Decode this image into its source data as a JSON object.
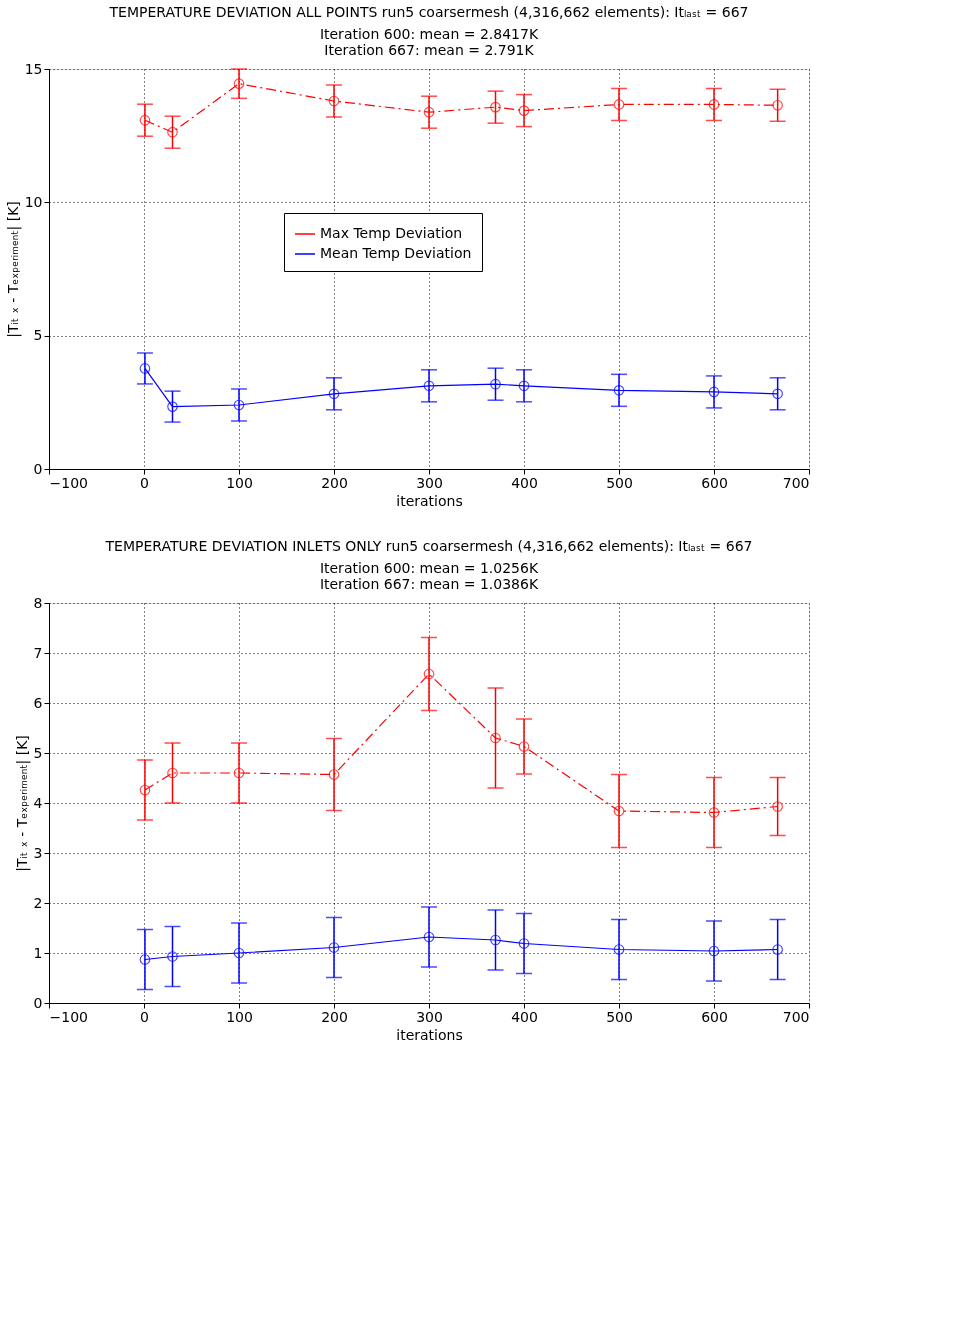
{
  "chart_data": [
    {
      "type": "line",
      "title": "TEMPERATURE DEVIATION ALL POINTS run5 coarsermesh (4,316,662 elements): Itₗₐₛₜ = 667",
      "subtitle": "Iteration 600: mean = 2.8417K\nIteration 667: mean = 2.791K",
      "xlabel": "iterations",
      "ylabel": "|Tᵢₜ ₓ - Tₑₓₚₑᵣᵢₘₑₙₜ| [K]",
      "x": [
        1,
        30,
        100,
        200,
        300,
        370,
        400,
        500,
        600,
        667
      ],
      "xlim": [
        -100,
        700
      ],
      "xticks": [
        -100,
        0,
        100,
        200,
        300,
        400,
        500,
        600,
        700
      ],
      "ylim": [
        0,
        15
      ],
      "yticks": [
        0,
        5,
        10,
        15
      ],
      "grid": true,
      "legend": "top",
      "marker": "circle",
      "series": [
        {
          "name": "Max Temp Deviation",
          "color": "#ff0000",
          "line_style": "dashed",
          "values": [
            13.08,
            12.63,
            14.45,
            13.8,
            13.38,
            13.57,
            13.44,
            13.67,
            13.67,
            13.64
          ],
          "errors": [
            0.6,
            0.6,
            0.55,
            0.6,
            0.6,
            0.6,
            0.6,
            0.6,
            0.6,
            0.6
          ]
        },
        {
          "name": "Mean Temp Deviation",
          "color": "#0000ff",
          "line_style": "solid",
          "values": [
            3.77,
            2.34,
            2.4,
            2.82,
            3.12,
            3.18,
            3.12,
            2.95,
            2.89,
            2.82
          ],
          "errors": [
            0.58,
            0.58,
            0.6,
            0.6,
            0.6,
            0.6,
            0.6,
            0.6,
            0.6,
            0.6
          ]
        }
      ]
    },
    {
      "type": "line",
      "title": "TEMPERATURE DEVIATION INLETS ONLY run5 coarsermesh (4,316,662 elements): Itₗₐₛₜ = 667",
      "subtitle": "Iteration 600: mean = 1.0256K\nIteration 667: mean = 1.0386K",
      "xlabel": "iterations",
      "ylabel": "|Tᵢₜ ₓ - Tₑₓₚₑᵣᵢₘₑₙₜ| [K]",
      "x": [
        1,
        30,
        100,
        200,
        300,
        370,
        400,
        500,
        600,
        667
      ],
      "xlim": [
        -100,
        700
      ],
      "xticks": [
        -100,
        0,
        100,
        200,
        300,
        400,
        500,
        600,
        700
      ],
      "ylim": [
        0,
        8
      ],
      "yticks": [
        0,
        1,
        2,
        3,
        4,
        5,
        6,
        7,
        8
      ],
      "grid": true,
      "marker": "circle",
      "series": [
        {
          "color": "#ff0000",
          "line_style": "dashed",
          "values": [
            4.26,
            4.6,
            4.6,
            4.57,
            6.58,
            5.3,
            5.13,
            3.84,
            3.81,
            3.93
          ],
          "errors": [
            0.6,
            0.6,
            0.6,
            0.72,
            0.73,
            1.0,
            0.55,
            0.73,
            0.7,
            0.58
          ]
        },
        {
          "color": "#0000ff",
          "line_style": "solid",
          "values": [
            0.87,
            0.93,
            1.0,
            1.11,
            1.32,
            1.26,
            1.19,
            1.07,
            1.04,
            1.07
          ],
          "errors": [
            0.6,
            0.6,
            0.6,
            0.6,
            0.6,
            0.6,
            0.6,
            0.6,
            0.6,
            0.6
          ]
        }
      ]
    }
  ]
}
